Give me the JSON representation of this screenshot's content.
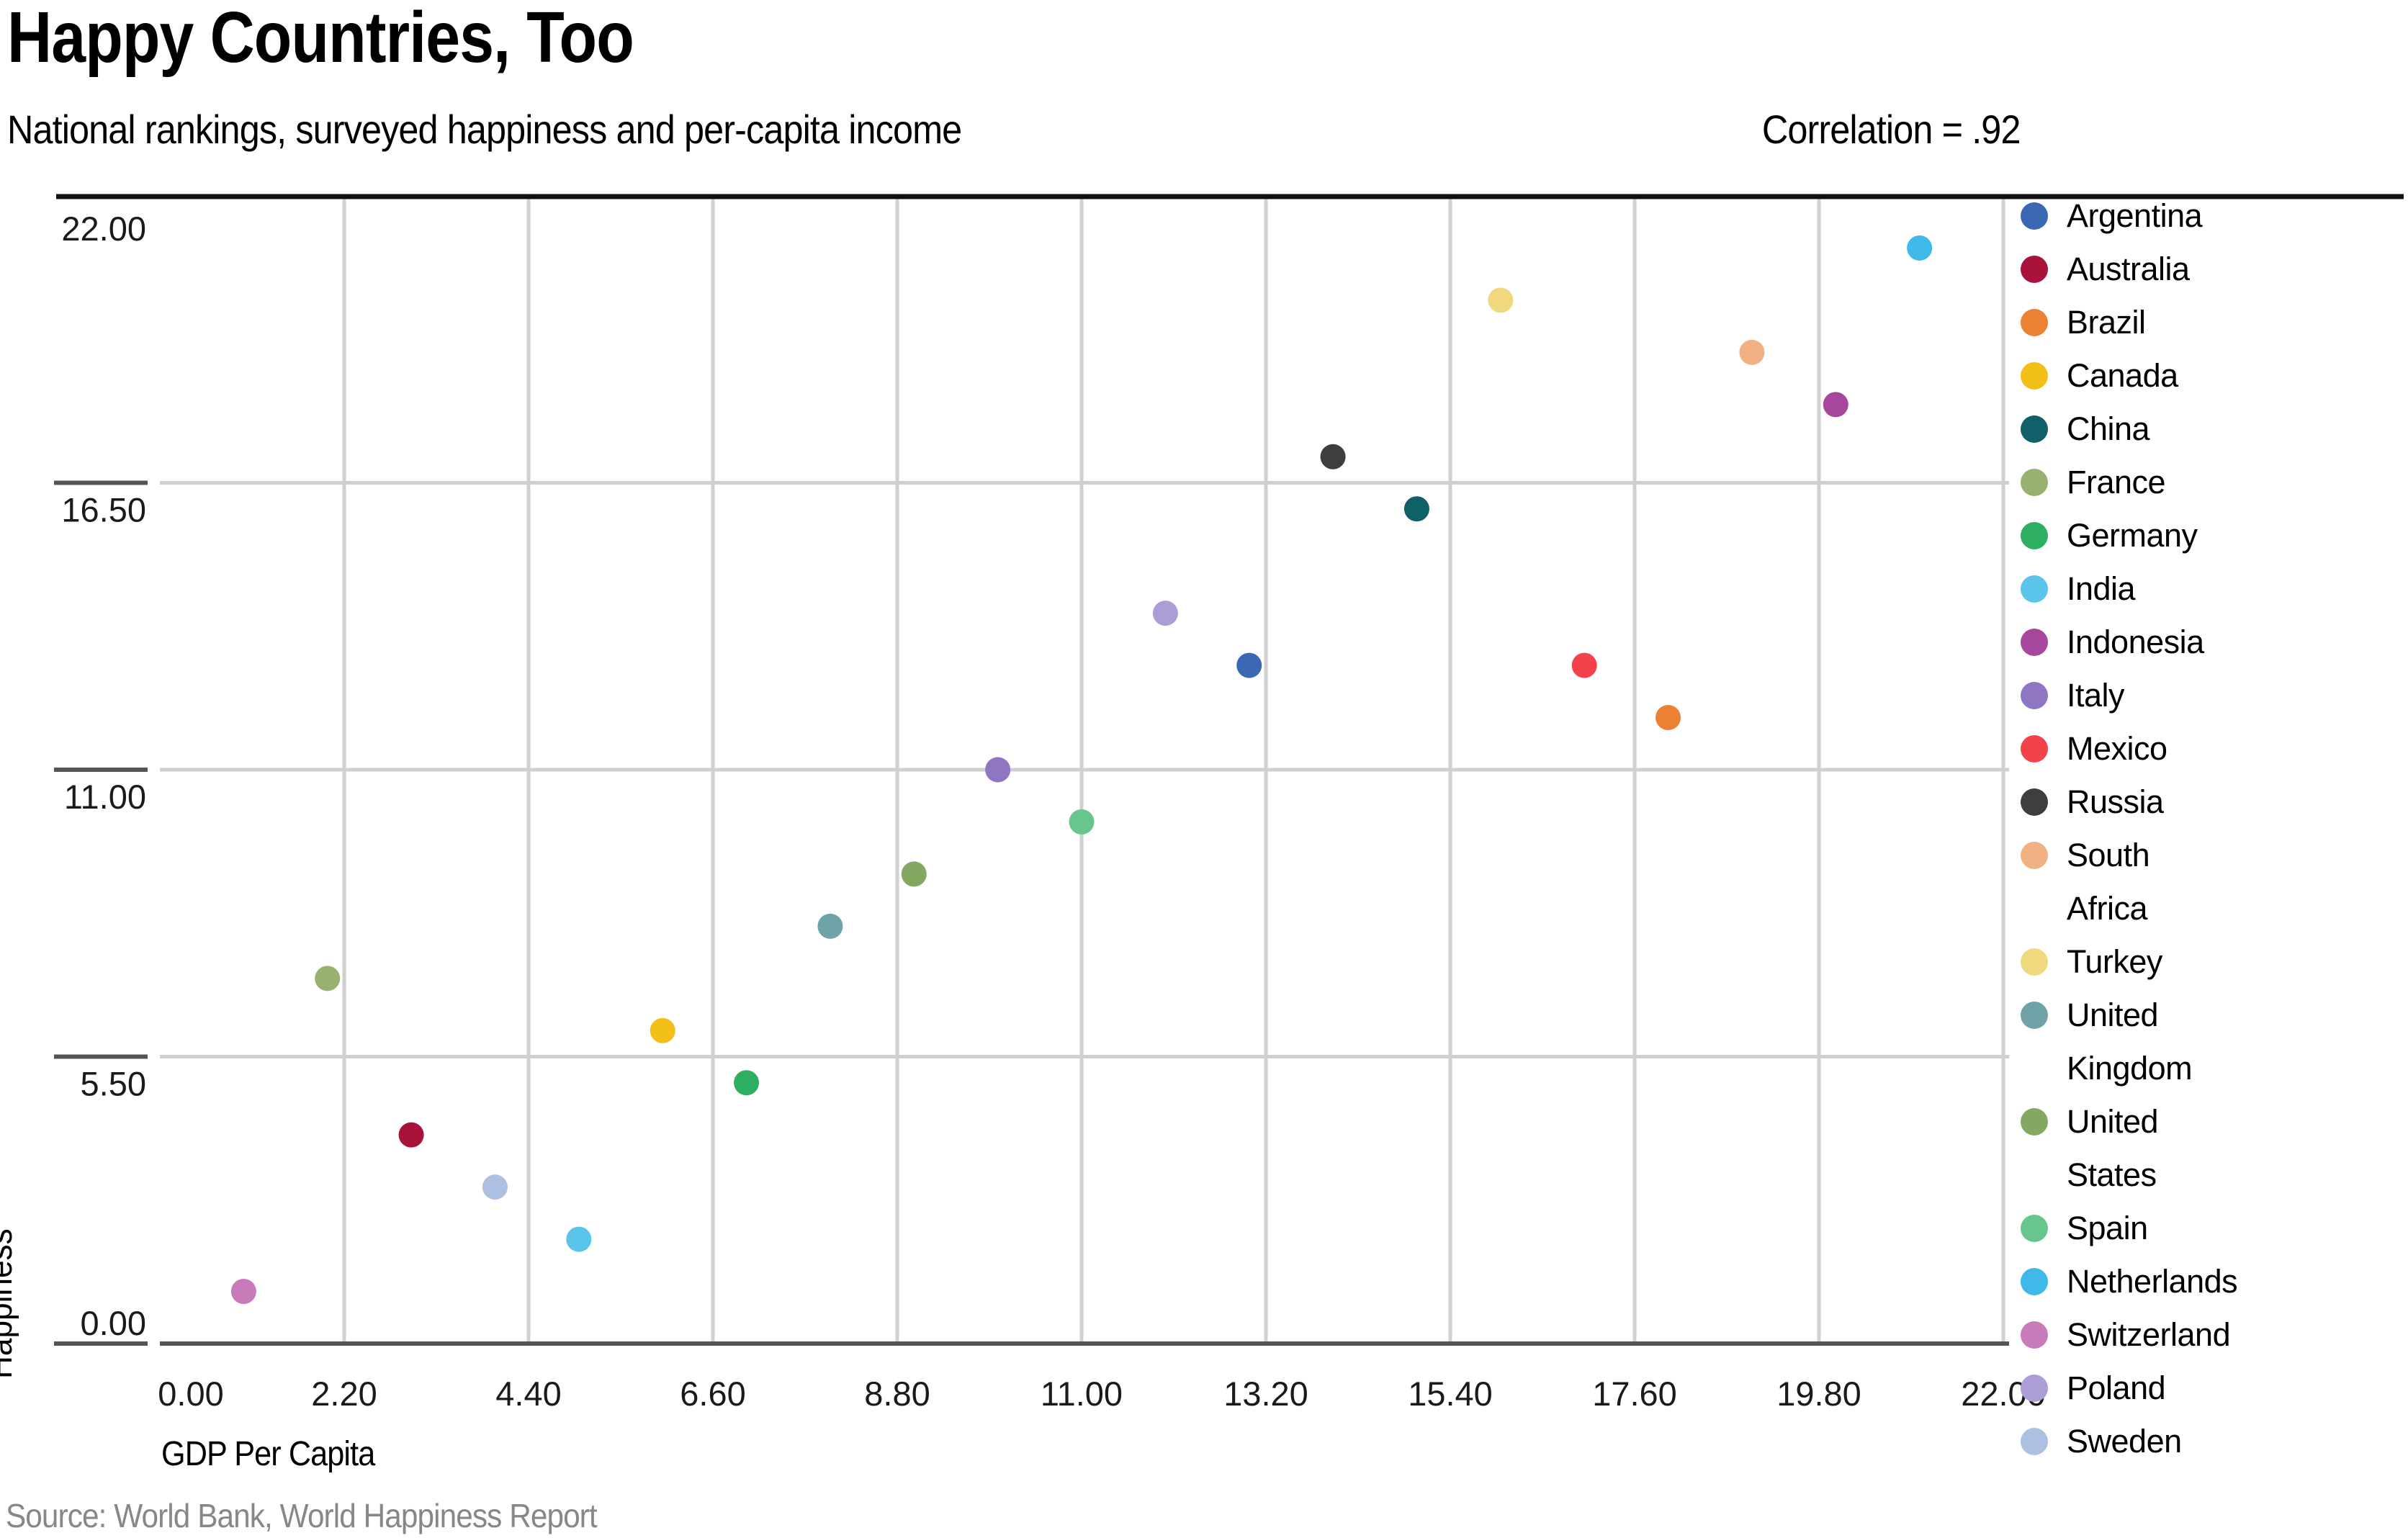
{
  "header": {
    "title": "Happy Countries, Too",
    "subtitle": "National rankings, surveyed happiness and per-capita income",
    "correlation_label": "Correlation = .92"
  },
  "source_note": "Source: World Bank, World Happiness Report",
  "chart_data": {
    "type": "scatter",
    "title": "Happy Countries, Too",
    "subtitle": "National rankings, surveyed happiness and per-capita income",
    "annotation": "Correlation = .92",
    "correlation": 0.92,
    "xlabel": "GDP Per Capita",
    "ylabel": "Happiness",
    "xlim": [
      0,
      22
    ],
    "ylim": [
      0,
      22
    ],
    "x_ticks": [
      0,
      2.2,
      4.4,
      6.6,
      8.8,
      11,
      13.2,
      15.4,
      17.6,
      19.8,
      22
    ],
    "x_tick_labels": [
      "0.00",
      "2.20",
      "4.40",
      "6.60",
      "8.80",
      "11.00",
      "13.20",
      "15.40",
      "17.60",
      "19.80",
      "22.00"
    ],
    "y_ticks": [
      0,
      5.5,
      11,
      16.5,
      22
    ],
    "y_tick_labels": [
      "0.00",
      "5.50",
      "11.00",
      "16.50",
      "22.00"
    ],
    "grid": true,
    "legend_position": "right",
    "points": [
      {
        "country": "Argentina",
        "display": "Argentina",
        "x": 13,
        "y": 13,
        "color": "#3A68B2"
      },
      {
        "country": "Australia",
        "display": "Australia",
        "x": 3,
        "y": 4,
        "color": "#A8123B"
      },
      {
        "country": "Brazil",
        "display": "Brazil",
        "x": 18,
        "y": 12,
        "color": "#EC8133"
      },
      {
        "country": "Canada",
        "display": "Canada",
        "x": 6,
        "y": 6,
        "color": "#F2BF17"
      },
      {
        "country": "China",
        "display": "China",
        "x": 15,
        "y": 16,
        "color": "#0F6069"
      },
      {
        "country": "France",
        "display": "France",
        "x": 2,
        "y": 7,
        "color": "#97B16F"
      },
      {
        "country": "Germany",
        "display": "Germany",
        "x": 7,
        "y": 5,
        "color": "#2EAE60"
      },
      {
        "country": "India",
        "display": "India",
        "x": 5,
        "y": 2,
        "color": "#5BC4EA"
      },
      {
        "country": "Indonesia",
        "display": "Indonesia",
        "x": 20,
        "y": 18,
        "color": "#A6479D"
      },
      {
        "country": "Italy",
        "display": "Italy",
        "x": 10,
        "y": 11,
        "color": "#8F76C2"
      },
      {
        "country": "Mexico",
        "display": "Mexico",
        "x": 17,
        "y": 13,
        "color": "#F4424B"
      },
      {
        "country": "Russia",
        "display": "Russia",
        "x": 14,
        "y": 17,
        "color": "#3E3E3E"
      },
      {
        "country": "South Africa",
        "display": "South\nAfrica",
        "x": 19,
        "y": 19,
        "color": "#F2B183"
      },
      {
        "country": "Turkey",
        "display": "Turkey",
        "x": 16,
        "y": 20,
        "color": "#F0D87E"
      },
      {
        "country": "United Kingdom",
        "display": "United\nKingdom",
        "x": 8,
        "y": 8,
        "color": "#6FA3A8"
      },
      {
        "country": "United States",
        "display": "United\nStates",
        "x": 9,
        "y": 9,
        "color": "#84A862"
      },
      {
        "country": "Spain",
        "display": "Spain",
        "x": 11,
        "y": 10,
        "color": "#68C68C"
      },
      {
        "country": "Netherlands",
        "display": "Netherlands",
        "x": 21,
        "y": 21,
        "color": "#3FBAE8"
      },
      {
        "country": "Switzerland",
        "display": "Switzerland",
        "x": 1,
        "y": 1,
        "color": "#C97AB8"
      },
      {
        "country": "Poland",
        "display": "Poland",
        "x": 12,
        "y": 14,
        "color": "#AC9DD6"
      },
      {
        "country": "Sweden",
        "display": "Sweden",
        "x": 4,
        "y": 3,
        "color": "#AEC0E2"
      }
    ]
  }
}
